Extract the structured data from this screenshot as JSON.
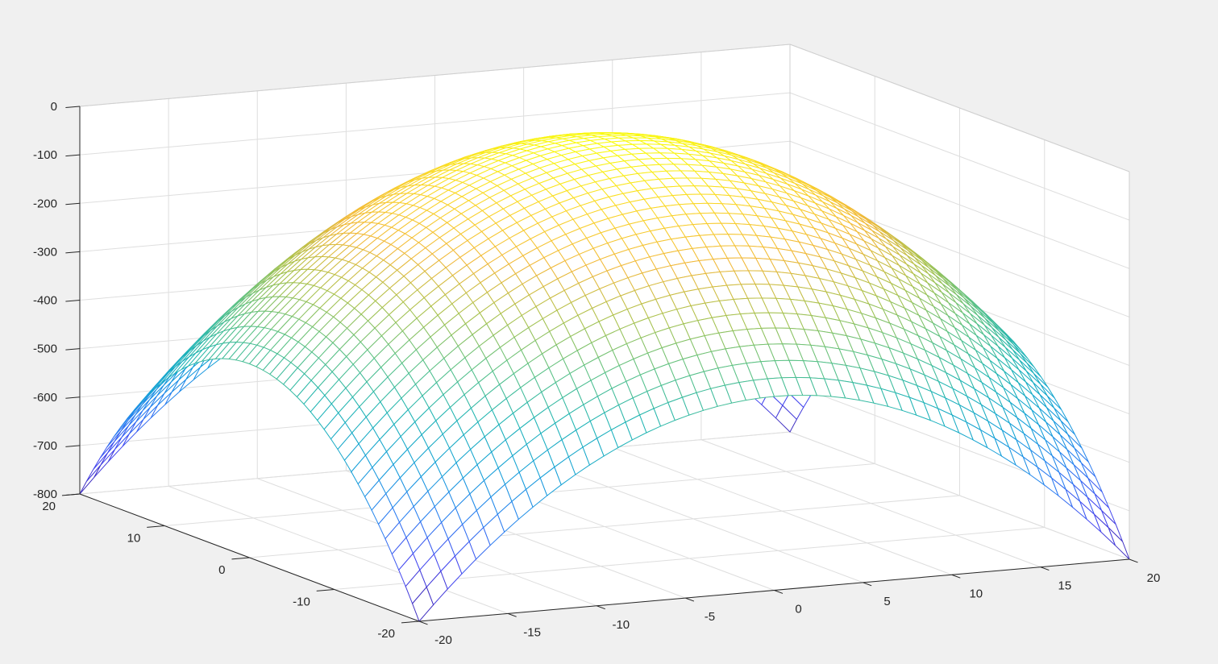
{
  "chart_data": {
    "type": "surface-mesh",
    "title": "",
    "xlabel": "",
    "ylabel": "",
    "zlabel": "",
    "function": "z = -(x^2 + y^2)",
    "x_range": [
      -20,
      20
    ],
    "y_range": [
      -20,
      20
    ],
    "z_range": [
      -800,
      0
    ],
    "grid_step": 0.8,
    "x_ticks": [
      "-20",
      "-15",
      "-10",
      "-5",
      "0",
      "5",
      "10",
      "15",
      "20"
    ],
    "y_ticks": [
      "-20",
      "-10",
      "0",
      "10",
      "20"
    ],
    "z_ticks": [
      "-800",
      "-700",
      "-600",
      "-500",
      "-400",
      "-300",
      "-200",
      "-100",
      "0"
    ],
    "grid": true,
    "colormap": "parula",
    "colormap_stops": [
      "#3e26a8",
      "#4646f0",
      "#2b80f2",
      "#13a1d8",
      "#1fb5b5",
      "#5bc286",
      "#a8c24e",
      "#f1b83a",
      "#fad52a",
      "#f9fb0e"
    ]
  }
}
